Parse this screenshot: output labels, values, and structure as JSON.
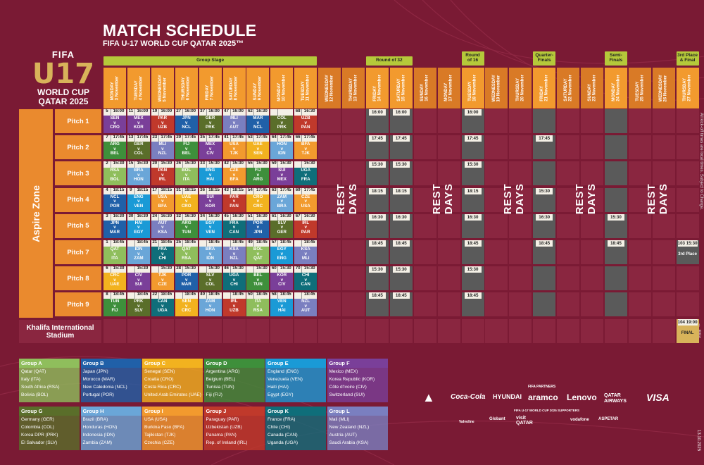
{
  "title": "MATCH SCHEDULE",
  "subtitle": "FIFA U-17 WORLD CUP QATAR 2025™",
  "logo": {
    "fifa": "FIFA",
    "u17": "U17",
    "wc1": "WORLD CUP",
    "wc2": "QATAR 2025"
  },
  "side_note": "All kick-off times are local times. Subject to Change.",
  "copyright": "© FIFA",
  "datecode": "13.10.2025",
  "stages": [
    {
      "label": "Group Stage",
      "start": 0,
      "end": 8
    },
    {
      "label": "Round of 32",
      "start": 11,
      "end": 12
    },
    {
      "label": "Round\nof 16",
      "start": 15,
      "end": 15
    },
    {
      "label": "Quarter-\nFinals",
      "start": 18,
      "end": 18
    },
    {
      "label": "Semi-\nFinals",
      "start": 21,
      "end": 21
    },
    {
      "label": "3rd Place\n& Final",
      "start": 24,
      "end": 24
    }
  ],
  "days": [
    {
      "wd": "MONDAY",
      "d": "3 November"
    },
    {
      "wd": "TUESDAY",
      "d": "4 November"
    },
    {
      "wd": "WEDNESDAY",
      "d": "5 November"
    },
    {
      "wd": "THURSDAY",
      "d": "6 November"
    },
    {
      "wd": "FRIDAY",
      "d": "7 November"
    },
    {
      "wd": "SATURDAY",
      "d": "8 November"
    },
    {
      "wd": "SUNDAY",
      "d": "9 November"
    },
    {
      "wd": "MONDAY",
      "d": "10 November"
    },
    {
      "wd": "TUESDAY",
      "d": "11 November"
    },
    {
      "wd": "WEDNESDAY",
      "d": "12 November"
    },
    {
      "wd": "THURSDAY",
      "d": "13 November"
    },
    {
      "wd": "FRIDAY",
      "d": "14 November"
    },
    {
      "wd": "SATURDAY",
      "d": "15 November"
    },
    {
      "wd": "SUNDAY",
      "d": "16 November"
    },
    {
      "wd": "MONDAY",
      "d": "17 November"
    },
    {
      "wd": "TUESDAY",
      "d": "18 November"
    },
    {
      "wd": "WEDNESDAY",
      "d": "19 November"
    },
    {
      "wd": "THURSDAY",
      "d": "20 November"
    },
    {
      "wd": "FRIDAY",
      "d": "21 November"
    },
    {
      "wd": "SATURDAY",
      "d": "22 November"
    },
    {
      "wd": "SUNDAY",
      "d": "23 November"
    },
    {
      "wd": "MONDAY",
      "d": "24 November"
    },
    {
      "wd": "TUESDAY",
      "d": "25 November"
    },
    {
      "wd": "WEDNESDAY",
      "d": "26 November"
    },
    {
      "wd": "THURSDAY",
      "d": "27 November"
    }
  ],
  "rest_label": "REST DAYS",
  "venue": "Aspire Zone",
  "pitches": [
    "Pitch 1",
    "Pitch 2",
    "Pitch 3",
    "Pitch 4",
    "Pitch 5",
    "Pitch 7",
    "Pitch 8",
    "Pitch 9"
  ],
  "stadium": "Khalifa International Stadium",
  "group_colors": {
    "A": "#8fbe5c",
    "B": "#2060a8",
    "C": "#f2b21f",
    "D": "#3e8f3b",
    "E": "#1a9ad6",
    "F": "#7a3f99",
    "G": "#5a6e2a",
    "H": "#6aa6d8",
    "I": "#f29a2e",
    "J": "#c0392b",
    "K": "#0f6e7a",
    "L": "#7a7fc0"
  },
  "matches": [
    [
      {
        "n": "5",
        "t": "16:00",
        "a": "SEN",
        "b": "CRO",
        "g": "F"
      },
      {
        "n": "11",
        "t": "16:00",
        "a": "MEX",
        "b": "KOR",
        "g": "F"
      },
      {
        "n": "19",
        "t": "16:00",
        "a": "PAR",
        "b": "UZB",
        "g": "J"
      },
      {
        "n": "27",
        "t": "16:00",
        "a": "JPN",
        "b": "NCL",
        "g": "B"
      },
      {
        "n": "37",
        "t": "16:00",
        "a": "GER",
        "b": "PRK",
        "g": "G"
      },
      {
        "n": "47",
        "t": "16:00",
        "a": "MLI",
        "b": "AUT",
        "g": "L"
      },
      {
        "n": "62",
        "t": "16:30",
        "a": "MAR",
        "b": "NCL",
        "g": "B"
      },
      {
        "n": "",
        "t": "",
        "a": "COL",
        "b": "PRK",
        "g": "G"
      },
      {
        "n": "68",
        "t": "16:30",
        "a": "UZB",
        "b": "PAN",
        "g": "J"
      }
    ],
    [
      {
        "n": "7",
        "t": "17:45",
        "a": "ARG",
        "b": "BEL",
        "g": "D"
      },
      {
        "n": "13",
        "t": "17:45",
        "a": "GER",
        "b": "COL",
        "g": "G"
      },
      {
        "n": "23",
        "t": "17:45",
        "a": "MLI",
        "b": "NZL",
        "g": "L"
      },
      {
        "n": "29",
        "t": "17:45",
        "a": "FIJ",
        "b": "BEL",
        "g": "D"
      },
      {
        "n": "35",
        "t": "17:45",
        "a": "MEX",
        "b": "CIV",
        "g": "F"
      },
      {
        "n": "41",
        "t": "17:45",
        "a": "USA",
        "b": "TJK",
        "g": "I"
      },
      {
        "n": "53",
        "t": "17:45",
        "a": "UAE",
        "b": "SEN",
        "g": "C"
      },
      {
        "n": "64",
        "t": "17:45",
        "a": "HON",
        "b": "IDN",
        "g": "H"
      },
      {
        "n": "66",
        "t": "17:45",
        "a": "BFA",
        "b": "TJK",
        "g": "I"
      }
    ],
    [
      {
        "n": "2",
        "t": "15:30",
        "a": "RSA",
        "b": "BOL",
        "g": "A"
      },
      {
        "n": "15",
        "t": "15:30",
        "a": "BRA",
        "b": "HON",
        "g": "H"
      },
      {
        "n": "20",
        "t": "15:30",
        "a": "PAN",
        "b": "IRL",
        "g": "J"
      },
      {
        "n": "26",
        "t": "15:30",
        "a": "BOL",
        "b": "ITA",
        "g": "A"
      },
      {
        "n": "33",
        "t": "15:30",
        "a": "ENG",
        "b": "HAI",
        "g": "E"
      },
      {
        "n": "42",
        "t": "15:30",
        "a": "CZE",
        "b": "BFA",
        "g": "I"
      },
      {
        "n": "55",
        "t": "15:30",
        "a": "FIJ",
        "b": "ARG",
        "g": "D"
      },
      {
        "n": "59",
        "t": "15:30",
        "a": "SUI",
        "b": "MEX",
        "g": "F"
      },
      {
        "n": "",
        "t": "15:30",
        "a": "UGA",
        "b": "FRA",
        "g": "K"
      }
    ],
    [
      {
        "n": "4",
        "t": "18:15",
        "a": "NCL",
        "b": "POR",
        "g": "B"
      },
      {
        "n": "9",
        "t": "18:15",
        "a": "ENG",
        "b": "VEN",
        "g": "E"
      },
      {
        "n": "17",
        "t": "18:15",
        "a": "USA",
        "b": "BFA",
        "g": "I"
      },
      {
        "n": "31",
        "t": "18:15",
        "a": "UAE",
        "b": "CRO",
        "g": "C"
      },
      {
        "n": "36",
        "t": "18:15",
        "a": "SUI",
        "b": "KOR",
        "g": "F"
      },
      {
        "n": "43",
        "t": "18:15",
        "a": "PAR",
        "b": "PAN",
        "g": "J"
      },
      {
        "n": "54",
        "t": "17:45",
        "a": "CRO",
        "b": "CRC",
        "g": "C"
      },
      {
        "n": "63",
        "t": "17:45",
        "a": "ZAM",
        "b": "BRA",
        "g": "H"
      },
      {
        "n": "69",
        "t": "17:45",
        "a": "CZE",
        "b": "USA",
        "g": "I"
      }
    ],
    [
      {
        "n": "3",
        "t": "16:30",
        "a": "JPN",
        "b": "MAR",
        "g": "B"
      },
      {
        "n": "30",
        "t": "16:30",
        "a": "HAI",
        "b": "EGY",
        "g": "E"
      },
      {
        "n": "24",
        "t": "16:30",
        "a": "AUT",
        "b": "KSA",
        "g": "L"
      },
      {
        "n": "32",
        "t": "16:30",
        "a": "ARG",
        "b": "TUN",
        "g": "D"
      },
      {
        "n": "34",
        "t": "16:30",
        "a": "EGY",
        "b": "VEN",
        "g": "E"
      },
      {
        "n": "45",
        "t": "16:30",
        "a": "FRA",
        "b": "CAN",
        "g": "K"
      },
      {
        "n": "51",
        "t": "16:30",
        "a": "POR",
        "b": "JPN",
        "g": "B"
      },
      {
        "n": "61",
        "t": "16:30",
        "a": "SLV",
        "b": "GER",
        "g": "G"
      },
      {
        "n": "67",
        "t": "16:30",
        "a": "IRL",
        "b": "PAR",
        "g": "J"
      }
    ],
    [
      {
        "n": "1",
        "t": "18:45",
        "a": "QAT",
        "b": "ITA",
        "g": "A"
      },
      {
        "n": "",
        "t": "18:45",
        "a": "IDN",
        "b": "ZAM",
        "g": "H"
      },
      {
        "n": "21",
        "t": "18:45",
        "a": "FRA",
        "b": "CHI",
        "g": "K"
      },
      {
        "n": "25",
        "t": "18:45",
        "a": "QAT",
        "b": "RSA",
        "g": "A"
      },
      {
        "n": "",
        "t": "18:45",
        "a": "BRA",
        "b": "IDN",
        "g": "H"
      },
      {
        "n": "",
        "t": "18:45",
        "a": "KSA",
        "b": "NZL",
        "g": "L"
      },
      {
        "n": "49",
        "t": "18:45",
        "a": "BOL",
        "b": "QAT",
        "g": "A"
      },
      {
        "n": "57",
        "t": "18:45",
        "a": "EGY",
        "b": "ENG",
        "g": "E"
      },
      {
        "n": "",
        "t": "18:45",
        "a": "KSA",
        "b": "MLI",
        "g": "L"
      }
    ],
    [
      {
        "n": "6",
        "t": "15:30",
        "a": "CRC",
        "b": "UAE",
        "g": "C"
      },
      {
        "n": "",
        "t": "15:30",
        "a": "CIV",
        "b": "SUI",
        "g": "F"
      },
      {
        "n": "",
        "t": "15:30",
        "a": "TJK",
        "b": "CZE",
        "g": "I"
      },
      {
        "n": "28",
        "t": "15:30",
        "a": "POR",
        "b": "MAR",
        "g": "B"
      },
      {
        "n": "",
        "t": "15:30",
        "a": "SLV",
        "b": "COL",
        "g": "G"
      },
      {
        "n": "46",
        "t": "15:30",
        "a": "UGA",
        "b": "CHI",
        "g": "K"
      },
      {
        "n": "",
        "t": "15:30",
        "a": "BEL",
        "b": "TUN",
        "g": "D"
      },
      {
        "n": "60",
        "t": "15:30",
        "a": "KOR",
        "b": "CIV",
        "g": "F"
      },
      {
        "n": "70",
        "t": "15:30",
        "a": "CHI",
        "b": "CAN",
        "g": "K"
      }
    ],
    [
      {
        "n": "8",
        "t": "18:45",
        "a": "TUN",
        "b": "FIJ",
        "g": "D"
      },
      {
        "n": "",
        "t": "18:45",
        "a": "PRK",
        "b": "SLV",
        "g": "G"
      },
      {
        "n": "22",
        "t": "18:45",
        "a": "CAN",
        "b": "UGA",
        "g": "K"
      },
      {
        "n": "",
        "t": "18:45",
        "a": "SEN",
        "b": "CRC",
        "g": "C"
      },
      {
        "n": "40",
        "t": "18:45",
        "a": "ZAM",
        "b": "HON",
        "g": "H"
      },
      {
        "n": "",
        "t": "18:45",
        "a": "IRL",
        "b": "UZB",
        "g": "J"
      },
      {
        "n": "50",
        "t": "18:45",
        "a": "ITA",
        "b": "RSA",
        "g": "A"
      },
      {
        "n": "58",
        "t": "18:45",
        "a": "VEN",
        "b": "HAI",
        "g": "E"
      },
      {
        "n": "",
        "t": "18:45",
        "a": "NZL",
        "b": "AUT",
        "g": "L"
      }
    ]
  ],
  "ko": [
    {
      "col": 11,
      "rows": [
        "16:00",
        "17:45",
        "15:30",
        "18:15",
        "16:30",
        "18:45",
        "15:30",
        "18:45"
      ]
    },
    {
      "col": 12,
      "rows": [
        "16:00",
        "17:45",
        "15:30",
        "18:15",
        "16:30",
        "18:45",
        "15:30",
        "18:45"
      ]
    },
    {
      "col": 15,
      "rows": [
        "16:00",
        "17:45",
        "15:30",
        "18:15",
        "16:30",
        "18:45",
        "15:30",
        "18:45"
      ]
    },
    {
      "col": 18,
      "rows": [
        "",
        "17:45",
        "",
        "15:30",
        "16:30",
        "18:45",
        "",
        ""
      ]
    },
    {
      "col": 21,
      "rows": [
        "",
        "",
        "",
        "",
        "15:30",
        "18:45",
        "",
        ""
      ]
    }
  ],
  "third_place": {
    "n": "103",
    "t": "15:30",
    "label": "3rd Place"
  },
  "final": {
    "n": "104",
    "t": "19:00",
    "label": "FINAL"
  },
  "groups": [
    {
      "name": "Group A",
      "key": "A",
      "teams": [
        "Qatar (QAT)",
        "Italy (ITA)",
        "South Africa (RSA)",
        "Bolivia (BOL)"
      ]
    },
    {
      "name": "Group B",
      "key": "B",
      "teams": [
        "Japan (JPN)",
        "Morocco (MAR)",
        "New Caledonia (NCL)",
        "Portugal (POR)"
      ]
    },
    {
      "name": "Group C",
      "key": "C",
      "teams": [
        "Senegal (SEN)",
        "Croatia (CRO)",
        "Costa Rica (CRC)",
        "United Arab Emirates (UAE)"
      ]
    },
    {
      "name": "Group D",
      "key": "D",
      "teams": [
        "Argentina (ARG)",
        "Belgium (BEL)",
        "Tunisia (TUN)",
        "Fiji (FIJ)"
      ]
    },
    {
      "name": "Group E",
      "key": "E",
      "teams": [
        "England (ENG)",
        "Venezuela (VEN)",
        "Haiti (HAI)",
        "Egypt (EGY)"
      ]
    },
    {
      "name": "Group F",
      "key": "F",
      "teams": [
        "Mexico (MEX)",
        "Korea Republic (KOR)",
        "Côte d'Ivoire (CIV)",
        "Switzerland (SUI)"
      ]
    },
    {
      "name": "Group G",
      "key": "G",
      "teams": [
        "Germany (GER)",
        "Colombia (COL)",
        "Korea DPR (PRK)",
        "El Salvador (SLV)"
      ]
    },
    {
      "name": "Group H",
      "key": "H",
      "teams": [
        "Brazil (BRA)",
        "Honduras (HON)",
        "Indonesia (IDN)",
        "Zambia (ZAM)"
      ]
    },
    {
      "name": "Group I",
      "key": "I",
      "teams": [
        "USA (USA)",
        "Burkina Faso (BFA)",
        "Tajikistan (TJK)",
        "Czechia (CZE)"
      ]
    },
    {
      "name": "Group J",
      "key": "J",
      "teams": [
        "Paraguay (PAR)",
        "Uzbekistan (UZB)",
        "Panama (PAN)",
        "Rep. of Ireland (IRL)"
      ]
    },
    {
      "name": "Group K",
      "key": "K",
      "teams": [
        "France (FRA)",
        "Chile (CHI)",
        "Canada (CAN)",
        "Uganda (UGA)"
      ]
    },
    {
      "name": "Group L",
      "key": "L",
      "teams": [
        "Mali (MLI)",
        "New Zealand (NZL)",
        "Austria (AUT)",
        "Saudi Arabia (KSA)"
      ]
    }
  ],
  "sponsors": {
    "partners_label": "FIFA PARTNERS",
    "partners": [
      "Coca-Cola",
      "HYUNDAI",
      "aramco",
      "Lenovo",
      "QATAR AIRWAYS",
      "VISA"
    ],
    "supporters_label": "FIFA U-17 WORLD CUP 2025 SUPPORTERS",
    "supporters": [
      "Valvoline",
      "Globant",
      "visit QATAR",
      "vodafone",
      "ASPETAR"
    ]
  }
}
